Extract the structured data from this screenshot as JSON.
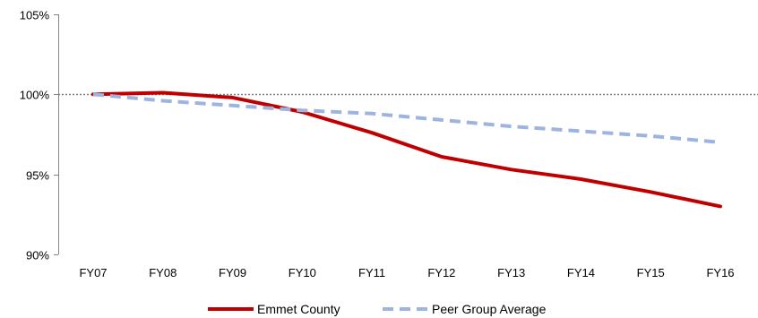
{
  "chart_data": {
    "type": "line",
    "title": "",
    "xlabel": "",
    "ylabel": "",
    "categories": [
      "FY07",
      "FY08",
      "FY09",
      "FY10",
      "FY11",
      "FY12",
      "FY13",
      "FY14",
      "FY15",
      "FY16"
    ],
    "ylim": [
      90,
      105
    ],
    "yticks": [
      90,
      95,
      100,
      105
    ],
    "ytick_labels": [
      "90%",
      "95%",
      "100%",
      "105%"
    ],
    "reference_line": {
      "value": 100,
      "style": "dotted",
      "color": "#808080"
    },
    "grid": false,
    "legend_position": "bottom",
    "series": [
      {
        "name": "Emmet County",
        "color": "#c00000",
        "style": "solid",
        "values": [
          100.0,
          100.1,
          99.8,
          98.9,
          97.6,
          96.1,
          95.3,
          94.7,
          93.9,
          93.0
        ]
      },
      {
        "name": "Peer Group Average",
        "color": "#9db3e0",
        "style": "dashed",
        "values": [
          100.0,
          99.6,
          99.3,
          99.0,
          98.8,
          98.4,
          98.0,
          97.7,
          97.4,
          97.0
        ]
      }
    ]
  }
}
